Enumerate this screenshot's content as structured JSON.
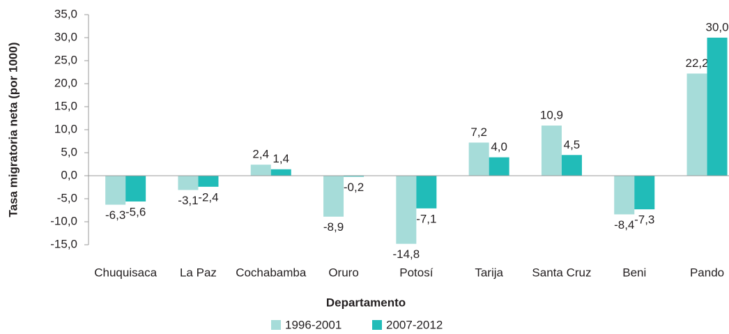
{
  "chart_data": {
    "type": "bar",
    "y_label": "Tasa migratoria neta (por 1000)",
    "x_label": "Departamento",
    "categories": [
      "Chuquisaca",
      "La Paz",
      "Cochabamba",
      "Oruro",
      "Potosí",
      "Tarija",
      "Santa Cruz",
      "Beni",
      "Pando"
    ],
    "series": [
      {
        "name": "1996-2001",
        "color": "#a6dcd9",
        "values": [
          -6.3,
          -3.1,
          2.4,
          -8.9,
          -14.8,
          7.2,
          10.9,
          -8.4,
          22.2
        ],
        "value_labels": [
          "-6,3",
          "-3,1",
          "2,4",
          "-8,9",
          "-14,8",
          "7,2",
          "10,9",
          "-8,4",
          "22,2"
        ]
      },
      {
        "name": "2007-2012",
        "color": "#21bcb8",
        "values": [
          -5.6,
          -2.4,
          1.4,
          -0.2,
          -7.1,
          4.0,
          4.5,
          -7.3,
          30.0
        ],
        "value_labels": [
          "-5,6",
          "-2,4",
          "1,4",
          "-0,2",
          "-7,1",
          "4,0",
          "4,5",
          "-7,3",
          "30,0"
        ]
      }
    ],
    "ylim": [
      -15,
      35
    ],
    "yticks": [
      {
        "value": -15,
        "label": "-15,0"
      },
      {
        "value": -10,
        "label": "-10,0"
      },
      {
        "value": -5,
        "label": "-5,0"
      },
      {
        "value": 0,
        "label": "0,0"
      },
      {
        "value": 5,
        "label": "5,0"
      },
      {
        "value": 10,
        "label": "10,0"
      },
      {
        "value": 15,
        "label": "15,0"
      },
      {
        "value": 20,
        "label": "20,0"
      },
      {
        "value": 25,
        "label": "25,0"
      },
      {
        "value": 30,
        "label": "30,0"
      },
      {
        "value": 35,
        "label": "35,0"
      }
    ],
    "grid": false,
    "legend": "bottom"
  }
}
